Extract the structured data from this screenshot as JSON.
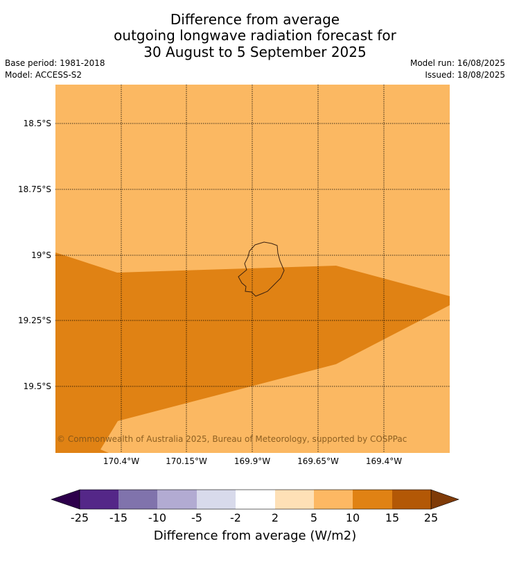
{
  "title": {
    "line1": "Difference from average",
    "line2": "outgoing longwave radiation forecast for",
    "line3": "30 August to 5 September 2025"
  },
  "meta": {
    "base_period": "Base period: 1981-2018",
    "model": "Model: ACCESS-S2",
    "model_run": "Model run: 16/08/2025",
    "issued": "Issued: 18/08/2025"
  },
  "map": {
    "lat_labels": [
      "18.5°S",
      "18.75°S",
      "19°S",
      "19.25°S",
      "19.5°S"
    ],
    "lon_labels": [
      "170.4°W",
      "170.15°W",
      "169.9°W",
      "169.65°W",
      "169.4°W"
    ],
    "copyright": "© Commonwealth of Australia 2025, Bureau of Meteorology, supported by COSPPac",
    "fill_colors": {
      "band_5_10": "#fbb862",
      "band_10_15": "#e08214"
    }
  },
  "colorbar": {
    "title": "Difference from average (W/m2)",
    "ticks": [
      "-25",
      "-15",
      "-10",
      "-5",
      "-2",
      "2",
      "5",
      "10",
      "15",
      "25"
    ],
    "colors": [
      "#542788",
      "#8073ac",
      "#b2abd2",
      "#d8daeb",
      "#ffffff",
      "#fee0b6",
      "#fdb863",
      "#e08214",
      "#b35806"
    ],
    "extend_low_color": "#2d004b",
    "extend_high_color": "#7f3b08"
  }
}
